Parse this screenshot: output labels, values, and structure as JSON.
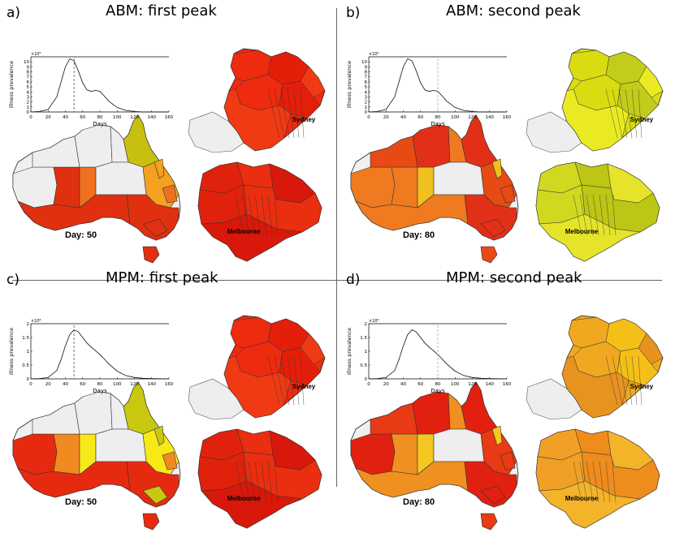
{
  "panels": [
    {
      "letter": "a)",
      "title": "ABM: first peak",
      "day": "Day: 50",
      "scale": "×10⁵",
      "peak_marker": 50,
      "dash": "#555555",
      "colors": {
        "aus": [
          "#e03010",
          "#f07020",
          "#f4a020",
          "#c8c010"
        ],
        "syd": [
          "#ee2a0f",
          "#e51e0a",
          "#f03a14"
        ],
        "mel": [
          "#e0220c",
          "#ea2e10",
          "#d8180a"
        ]
      }
    },
    {
      "letter": "b)",
      "title": "ABM: second peak",
      "day": "Day: 80",
      "scale": "×10⁵",
      "peak_marker": 80,
      "dash": "#aaaaaa",
      "colors": {
        "aus": [
          "#e84a14",
          "#f07a20",
          "#f0c020",
          "#e23018"
        ],
        "syd": [
          "#d8dc10",
          "#c2cc1a",
          "#eaea22"
        ],
        "mel": [
          "#d0d820",
          "#bcc614",
          "#e6e42a"
        ]
      }
    },
    {
      "letter": "c)",
      "title": "MPM: first peak",
      "day": "Day: 50",
      "scale": "×10⁶",
      "peak_marker": 50,
      "dash": "#555555",
      "colors": {
        "aus": [
          "#e62a10",
          "#f08a20",
          "#f8e818",
          "#c8c810"
        ],
        "syd": [
          "#ee2a0f",
          "#e51e0a",
          "#f03a14"
        ],
        "mel": [
          "#e0220c",
          "#ea2e10",
          "#d8180a"
        ]
      }
    },
    {
      "letter": "d)",
      "title": "MPM: second peak",
      "day": "Day: 80",
      "scale": "×10⁶",
      "peak_marker": 80,
      "dash": "#aaaaaa",
      "colors": {
        "aus": [
          "#e83a14",
          "#f09020",
          "#f4c820",
          "#e22010"
        ],
        "syd": [
          "#f0a820",
          "#f4c018",
          "#e89220"
        ],
        "mel": [
          "#f0a024",
          "#ee8c1c",
          "#f4b42a"
        ]
      }
    }
  ],
  "city_labels": {
    "sydney": "Sydney",
    "melbourne": "Melbourne"
  },
  "chart_data": [
    {
      "type": "line",
      "title": "",
      "xlabel": "Days",
      "ylabel": "illness prevalence",
      "xlim": [
        0,
        160
      ],
      "ylim": [
        0,
        11
      ],
      "scale_note": "×10⁵",
      "xticks": [
        0,
        20,
        40,
        60,
        80,
        100,
        120,
        140,
        160
      ],
      "yticks": [
        0,
        1,
        2,
        3,
        4,
        5,
        6,
        7,
        8,
        9,
        10
      ],
      "x": [
        0,
        10,
        20,
        30,
        35,
        40,
        45,
        50,
        55,
        60,
        65,
        70,
        75,
        80,
        85,
        90,
        100,
        110,
        120,
        130,
        140,
        160
      ],
      "series": [
        {
          "values": [
            0,
            0.1,
            0.5,
            3,
            6,
            9,
            10.6,
            10.2,
            8.2,
            5.8,
            4.4,
            4.1,
            4.3,
            4.1,
            3.2,
            2.2,
            0.9,
            0.3,
            0.1,
            0,
            0,
            0
          ]
        }
      ],
      "marker_x": 50
    },
    {
      "type": "line",
      "title": "",
      "xlabel": "Days",
      "ylabel": "illness prevalence",
      "xlim": [
        0,
        160
      ],
      "ylim": [
        0,
        11
      ],
      "scale_note": "×10⁵",
      "xticks": [
        0,
        20,
        40,
        60,
        80,
        100,
        120,
        140,
        160
      ],
      "yticks": [
        0,
        1,
        2,
        3,
        4,
        5,
        6,
        7,
        8,
        9,
        10
      ],
      "x": [
        0,
        10,
        20,
        30,
        35,
        40,
        45,
        50,
        55,
        60,
        65,
        70,
        75,
        80,
        85,
        90,
        100,
        110,
        120,
        130,
        140,
        160
      ],
      "series": [
        {
          "values": [
            0,
            0.1,
            0.5,
            3,
            6,
            9,
            10.6,
            10.2,
            8.2,
            5.8,
            4.4,
            4.1,
            4.3,
            4.1,
            3.2,
            2.2,
            0.9,
            0.3,
            0.1,
            0,
            0,
            0
          ]
        }
      ],
      "marker_x": 80
    },
    {
      "type": "line",
      "title": "",
      "xlabel": "Days",
      "ylabel": "illness prevalence",
      "xlim": [
        0,
        160
      ],
      "ylim": [
        0,
        2
      ],
      "scale_note": "×10⁶",
      "xticks": [
        0,
        20,
        40,
        60,
        80,
        100,
        120,
        140,
        160
      ],
      "yticks": [
        0,
        0.5,
        1,
        1.5,
        2
      ],
      "x": [
        0,
        10,
        20,
        30,
        35,
        40,
        45,
        50,
        55,
        60,
        65,
        70,
        75,
        80,
        85,
        90,
        100,
        110,
        120,
        130,
        140,
        160
      ],
      "series": [
        {
          "values": [
            0,
            0.01,
            0.05,
            0.3,
            0.7,
            1.2,
            1.6,
            1.78,
            1.7,
            1.5,
            1.3,
            1.15,
            1.02,
            0.88,
            0.72,
            0.55,
            0.28,
            0.12,
            0.05,
            0.02,
            0.01,
            0
          ]
        }
      ],
      "marker_x": 50
    },
    {
      "type": "line",
      "title": "",
      "xlabel": "Days",
      "ylabel": "illness prevalence",
      "xlim": [
        0,
        160
      ],
      "ylim": [
        0,
        2
      ],
      "scale_note": "×10⁶",
      "xticks": [
        0,
        20,
        40,
        60,
        80,
        100,
        120,
        140,
        160
      ],
      "yticks": [
        0,
        0.5,
        1,
        1.5,
        2
      ],
      "x": [
        0,
        10,
        20,
        30,
        35,
        40,
        45,
        50,
        55,
        60,
        65,
        70,
        75,
        80,
        85,
        90,
        100,
        110,
        120,
        130,
        140,
        160
      ],
      "series": [
        {
          "values": [
            0,
            0.01,
            0.05,
            0.3,
            0.7,
            1.2,
            1.6,
            1.78,
            1.7,
            1.5,
            1.3,
            1.15,
            1.02,
            0.88,
            0.72,
            0.55,
            0.28,
            0.12,
            0.05,
            0.02,
            0.01,
            0
          ]
        }
      ],
      "marker_x": 80
    }
  ]
}
